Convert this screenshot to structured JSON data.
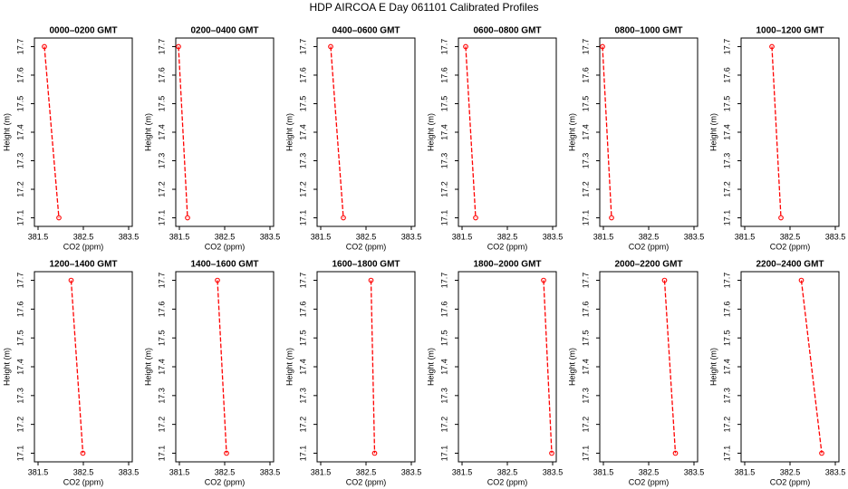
{
  "title": "HDP AIRCOA E  Day 061101  Calibrated Profiles",
  "chart_data": [
    {
      "type": "line",
      "title": "0000–0200 GMT",
      "xlabel": "CO2 (ppm)",
      "ylabel": "Height (m)",
      "xlim": [
        381.42,
        383.58
      ],
      "ylim": [
        17.07,
        17.73
      ],
      "xticks": [
        381.5,
        382.5,
        383.5
      ],
      "yticks": [
        17.1,
        17.2,
        17.3,
        17.4,
        17.5,
        17.6,
        17.7
      ],
      "series": [
        {
          "color": "#ff0000",
          "x": [
            381.64,
            381.96
          ],
          "values": [
            17.7,
            17.1
          ]
        }
      ]
    },
    {
      "type": "line",
      "title": "0200–0400 GMT",
      "xlabel": "CO2 (ppm)",
      "ylabel": "Height (m)",
      "xlim": [
        381.42,
        383.58
      ],
      "ylim": [
        17.07,
        17.73
      ],
      "xticks": [
        381.5,
        382.5,
        383.5
      ],
      "yticks": [
        17.1,
        17.2,
        17.3,
        17.4,
        17.5,
        17.6,
        17.7
      ],
      "series": [
        {
          "color": "#ff0000",
          "x": [
            381.48,
            381.68
          ],
          "values": [
            17.7,
            17.1
          ]
        }
      ]
    },
    {
      "type": "line",
      "title": "0400–0600 GMT",
      "xlabel": "CO2 (ppm)",
      "ylabel": "Height (m)",
      "xlim": [
        381.42,
        383.58
      ],
      "ylim": [
        17.07,
        17.73
      ],
      "xticks": [
        381.5,
        382.5,
        383.5
      ],
      "yticks": [
        17.1,
        17.2,
        17.3,
        17.4,
        17.5,
        17.6,
        17.7
      ],
      "series": [
        {
          "color": "#ff0000",
          "x": [
            381.72,
            382.0
          ],
          "values": [
            17.7,
            17.1
          ]
        }
      ]
    },
    {
      "type": "line",
      "title": "0600–0800 GMT",
      "xlabel": "CO2 (ppm)",
      "ylabel": "Height (m)",
      "xlim": [
        381.42,
        383.58
      ],
      "ylim": [
        17.07,
        17.73
      ],
      "xticks": [
        381.5,
        382.5,
        383.5
      ],
      "yticks": [
        17.1,
        17.2,
        17.3,
        17.4,
        17.5,
        17.6,
        17.7
      ],
      "series": [
        {
          "color": "#ff0000",
          "x": [
            381.58,
            381.8
          ],
          "values": [
            17.7,
            17.1
          ]
        }
      ]
    },
    {
      "type": "line",
      "title": "0800–1000 GMT",
      "xlabel": "CO2 (ppm)",
      "ylabel": "Height (m)",
      "xlim": [
        381.42,
        383.58
      ],
      "ylim": [
        17.07,
        17.73
      ],
      "xticks": [
        381.5,
        382.5,
        383.5
      ],
      "yticks": [
        17.1,
        17.2,
        17.3,
        17.4,
        17.5,
        17.6,
        17.7
      ],
      "series": [
        {
          "color": "#ff0000",
          "x": [
            381.48,
            381.68
          ],
          "values": [
            17.7,
            17.1
          ]
        }
      ]
    },
    {
      "type": "line",
      "title": "1000–1200 GMT",
      "xlabel": "CO2 (ppm)",
      "ylabel": "Height (m)",
      "xlim": [
        381.42,
        383.58
      ],
      "ylim": [
        17.07,
        17.73
      ],
      "xticks": [
        381.5,
        382.5,
        383.5
      ],
      "yticks": [
        17.1,
        17.2,
        17.3,
        17.4,
        17.5,
        17.6,
        17.7
      ],
      "series": [
        {
          "color": "#ff0000",
          "x": [
            382.1,
            382.3
          ],
          "values": [
            17.7,
            17.1
          ]
        }
      ]
    },
    {
      "type": "line",
      "title": "1200–1400 GMT",
      "xlabel": "CO2 (ppm)",
      "ylabel": "Height (m)",
      "xlim": [
        381.42,
        383.58
      ],
      "ylim": [
        17.07,
        17.73
      ],
      "xticks": [
        381.5,
        382.5,
        383.5
      ],
      "yticks": [
        17.1,
        17.2,
        17.3,
        17.4,
        17.5,
        17.6,
        17.7
      ],
      "series": [
        {
          "color": "#ff0000",
          "x": [
            382.23,
            382.49
          ],
          "values": [
            17.7,
            17.1
          ]
        }
      ]
    },
    {
      "type": "line",
      "title": "1400–1600 GMT",
      "xlabel": "CO2 (ppm)",
      "ylabel": "Height (m)",
      "xlim": [
        381.42,
        383.58
      ],
      "ylim": [
        17.07,
        17.73
      ],
      "xticks": [
        381.5,
        382.5,
        383.5
      ],
      "yticks": [
        17.1,
        17.2,
        17.3,
        17.4,
        17.5,
        17.6,
        17.7
      ],
      "series": [
        {
          "color": "#ff0000",
          "x": [
            382.34,
            382.54
          ],
          "values": [
            17.7,
            17.1
          ]
        }
      ]
    },
    {
      "type": "line",
      "title": "1600–1800 GMT",
      "xlabel": "CO2 (ppm)",
      "ylabel": "Height (m)",
      "xlim": [
        381.42,
        383.58
      ],
      "ylim": [
        17.07,
        17.73
      ],
      "xticks": [
        381.5,
        382.5,
        383.5
      ],
      "yticks": [
        17.1,
        17.2,
        17.3,
        17.4,
        17.5,
        17.6,
        17.7
      ],
      "series": [
        {
          "color": "#ff0000",
          "x": [
            382.61,
            382.69
          ],
          "values": [
            17.7,
            17.1
          ]
        }
      ]
    },
    {
      "type": "line",
      "title": "1800–2000 GMT",
      "xlabel": "CO2 (ppm)",
      "ylabel": "Height (m)",
      "xlim": [
        381.42,
        383.58
      ],
      "ylim": [
        17.07,
        17.73
      ],
      "xticks": [
        381.5,
        382.5,
        383.5
      ],
      "yticks": [
        17.1,
        17.2,
        17.3,
        17.4,
        17.5,
        17.6,
        17.7
      ],
      "series": [
        {
          "color": "#ff0000",
          "x": [
            383.3,
            383.48
          ],
          "values": [
            17.7,
            17.1
          ]
        }
      ]
    },
    {
      "type": "line",
      "title": "2000–2200 GMT",
      "xlabel": "CO2 (ppm)",
      "ylabel": "Height (m)",
      "xlim": [
        381.42,
        383.58
      ],
      "ylim": [
        17.07,
        17.73
      ],
      "xticks": [
        381.5,
        382.5,
        383.5
      ],
      "yticks": [
        17.1,
        17.2,
        17.3,
        17.4,
        17.5,
        17.6,
        17.7
      ],
      "series": [
        {
          "color": "#ff0000",
          "x": [
            382.85,
            383.09
          ],
          "values": [
            17.7,
            17.1
          ]
        }
      ]
    },
    {
      "type": "line",
      "title": "2200–2400 GMT",
      "xlabel": "CO2 (ppm)",
      "ylabel": "Height (m)",
      "xlim": [
        381.42,
        383.58
      ],
      "ylim": [
        17.07,
        17.73
      ],
      "xticks": [
        381.5,
        382.5,
        383.5
      ],
      "yticks": [
        17.1,
        17.2,
        17.3,
        17.4,
        17.5,
        17.6,
        17.7
      ],
      "series": [
        {
          "color": "#ff0000",
          "x": [
            382.75,
            383.2
          ],
          "values": [
            17.7,
            17.1
          ]
        }
      ]
    }
  ]
}
